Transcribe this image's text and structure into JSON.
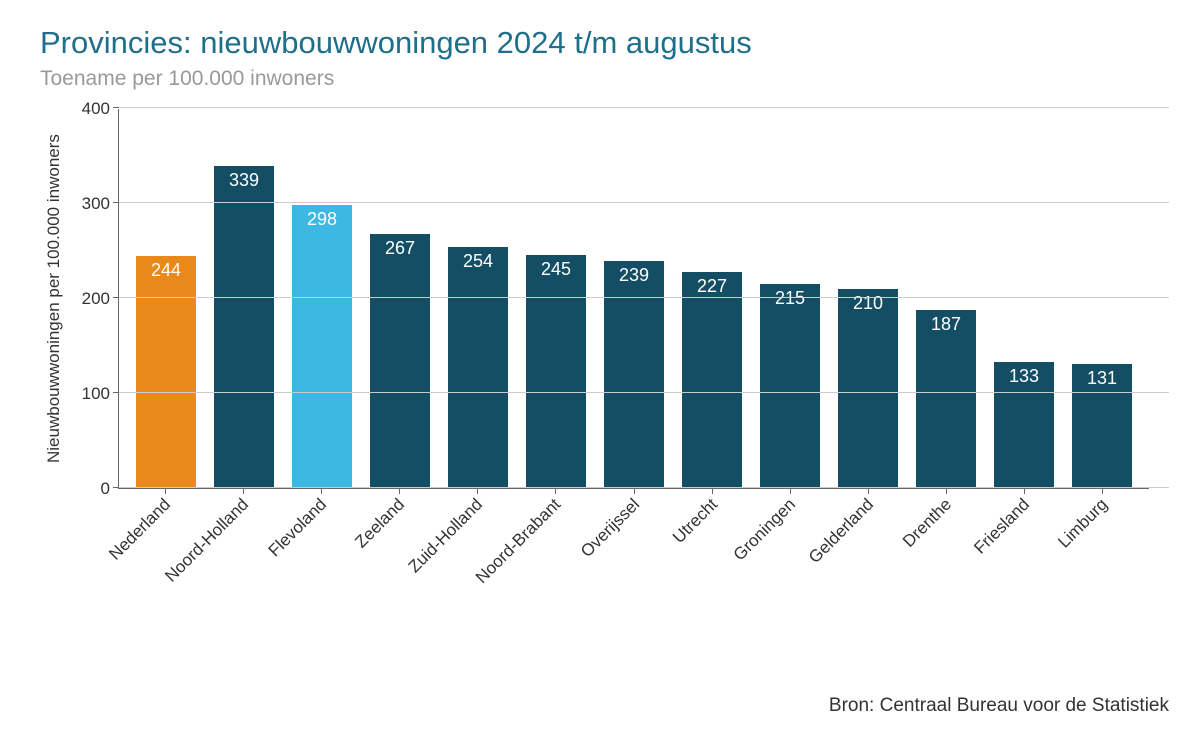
{
  "title": "Provincies: nieuwbouwwoningen 2024 t/m augustus",
  "subtitle": "Toename per 100.000 inwoners",
  "y_axis_label": "Nieuwbouwwoningen per 100.000 inwoners",
  "source": "Bron: Centraal Bureau voor de Statistiek",
  "chart": {
    "type": "bar",
    "ylim": [
      0,
      400
    ],
    "y_ticks": [
      0,
      100,
      200,
      300,
      400
    ],
    "background_color": "#ffffff",
    "grid_color": "#cccccc",
    "axis_color": "#666666",
    "title_color": "#1f6f8b",
    "subtitle_color": "#999999",
    "text_color": "#333333",
    "bar_label_color": "#ffffff",
    "bar_width_ratio": 0.78,
    "title_fontsize": 31,
    "subtitle_fontsize": 21,
    "axis_label_fontsize": 17,
    "tick_fontsize": 17,
    "bar_label_fontsize": 18,
    "source_fontsize": 19,
    "categories": [
      "Nederland",
      "Noord-Holland",
      "Flevoland",
      "Zeeland",
      "Zuid-Holland",
      "Noord-Brabant",
      "Overijssel",
      "Utrecht",
      "Groningen",
      "Gelderland",
      "Drenthe",
      "Friesland",
      "Limburg"
    ],
    "values": [
      244,
      339,
      298,
      267,
      254,
      245,
      239,
      227,
      215,
      210,
      187,
      133,
      131
    ],
    "bar_colors": [
      "#e8891a",
      "#134e65",
      "#3db7e4",
      "#134e65",
      "#134e65",
      "#134e65",
      "#134e65",
      "#134e65",
      "#134e65",
      "#134e65",
      "#134e65",
      "#134e65",
      "#134e65"
    ]
  }
}
